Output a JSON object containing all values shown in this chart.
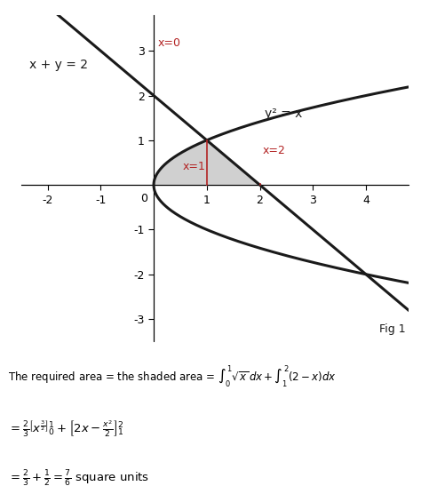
{
  "title": "",
  "xlim": [
    -2.5,
    4.8
  ],
  "ylim": [
    -3.5,
    3.8
  ],
  "xticks": [
    -2,
    -1,
    0,
    1,
    2,
    3,
    4
  ],
  "yticks": [
    -3,
    -2,
    -1,
    1,
    2,
    3
  ],
  "curve_color": "#1a1a1a",
  "curve_lw": 2.2,
  "shade_color": "#c8c8c8",
  "shade_alpha": 0.85,
  "label_color_red": "#b22222",
  "label_color_black": "#1a1a1a",
  "annotation_x0": "x=0",
  "annotation_x1": "x=1",
  "annotation_x2": "x=2",
  "annotation_curve": "y² = x",
  "annotation_line": "x + y = 2",
  "fig1_label": "Fig 1",
  "text_line1": "The required area = the shaded area = $\\int_0^1 \\sqrt{x}\\, dx + \\int_1^2 (2-x)dx$",
  "text_line2": "$= \\frac{2}{3}\\left[x^{\\frac{3}{2}}\\right]_0^1 + \\left[2x - \\frac{x^2}{2}\\right]_1^2$",
  "text_line3": "$= \\frac{2}{3} + \\frac{1}{2} = \\frac{7}{6}$ square units",
  "bg_color": "#ffffff"
}
